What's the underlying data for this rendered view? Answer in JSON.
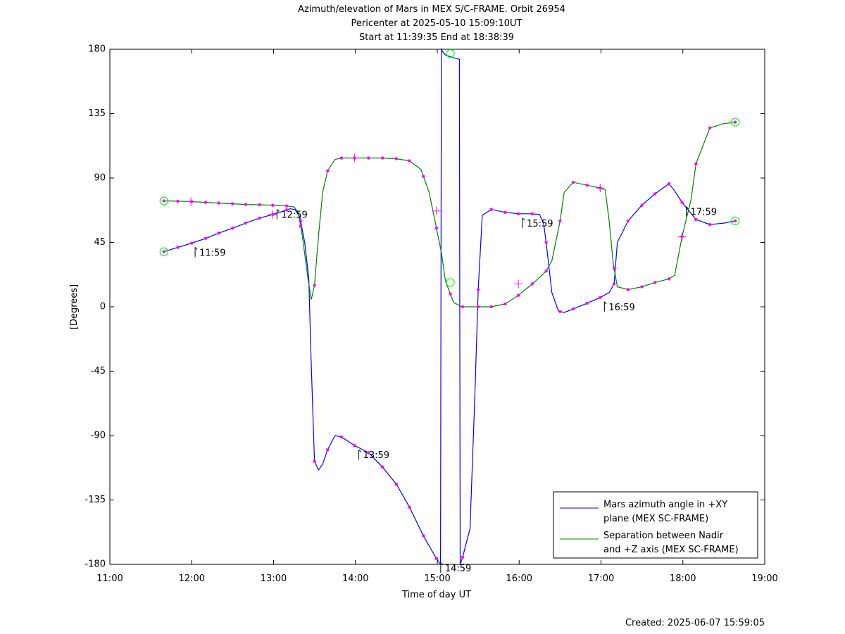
{
  "title_lines": [
    "Azimuth/elevation of Mars in MEX S/C-FRAME.  Orbit 26954",
    "Pericenter at 2025-05-10 15:09:10UT",
    "Start at 11:39:35 End at 18:38:39"
  ],
  "footer": "Created: 2025-06-07 15:59:05",
  "colors": {
    "azimuth": "#0000ff",
    "separation": "#008000",
    "marker": "#ff00ff",
    "endpoint": "#00ff00"
  },
  "chart_data": {
    "type": "line",
    "xlabel": "Time of day UT",
    "ylabel": "[Degrees]",
    "xlim": [
      11.0,
      19.0
    ],
    "ylim": [
      -180,
      180
    ],
    "x_ticks": [
      "11:00",
      "12:00",
      "13:00",
      "14:00",
      "15:00",
      "16:00",
      "17:00",
      "18:00",
      "19:00"
    ],
    "y_ticks": [
      "180",
      "135",
      "90",
      "45",
      "0",
      "-45",
      "-90",
      "-135",
      "-180"
    ],
    "grid": false,
    "legend_position": "bottom-right",
    "series": [
      {
        "name_lines": [
          "Mars azimuth angle in +XY",
          "plane (MEX SC-FRAME)"
        ],
        "x": [
          11.66,
          11.83,
          12.0,
          12.17,
          12.33,
          12.5,
          12.66,
          12.83,
          12.99,
          13.1,
          13.2,
          13.26,
          13.32,
          13.38,
          13.43,
          13.46,
          13.5,
          13.55,
          13.6,
          13.66,
          13.75,
          13.83,
          13.99,
          14.16,
          14.33,
          14.5,
          14.66,
          14.83,
          14.99,
          15.04,
          15.05,
          15.07,
          15.1,
          15.2,
          15.27,
          15.28,
          15.31,
          15.4,
          15.46,
          15.5,
          15.55,
          15.66,
          15.83,
          15.99,
          16.16,
          16.25,
          16.3,
          16.33,
          16.4,
          16.48,
          16.55,
          16.66,
          16.83,
          16.99,
          17.1,
          17.16,
          17.2,
          17.33,
          17.5,
          17.66,
          17.83,
          17.9,
          17.99,
          18.16,
          18.33,
          18.5,
          18.64
        ],
        "y": [
          38.5,
          41.5,
          44.5,
          47.8,
          51.5,
          55.0,
          58.5,
          62.0,
          64.5,
          66.5,
          68.5,
          68.0,
          63.0,
          45.0,
          20.0,
          -40.0,
          -108.0,
          -114.0,
          -110.0,
          -100.0,
          -90.0,
          -91.0,
          -97.0,
          -102.0,
          -112.0,
          -124.0,
          -140.0,
          -160.0,
          -176.0,
          -180.0,
          180.0,
          178.0,
          176.0,
          174.0,
          173.0,
          -180.0,
          -175.0,
          -155.0,
          -60.0,
          12.0,
          64.0,
          68.0,
          66.0,
          65.0,
          65.0,
          64.5,
          58.0,
          45.0,
          10.0,
          -3.0,
          -4.0,
          -1.5,
          2.5,
          6.5,
          10.0,
          16.0,
          45.0,
          60.0,
          71.0,
          79.0,
          86.0,
          81.0,
          73.0,
          61.0,
          57.5,
          58.5,
          60.0
        ],
        "markers_x": [
          11.66,
          11.83,
          12.0,
          12.17,
          12.33,
          12.5,
          12.66,
          12.83,
          12.99,
          13.16,
          13.33,
          13.5,
          13.66,
          13.83,
          13.99,
          14.16,
          14.33,
          14.5,
          14.66,
          14.83,
          14.99,
          15.31,
          15.5,
          15.66,
          15.83,
          15.99,
          16.16,
          16.33,
          16.5,
          16.66,
          16.83,
          16.99,
          17.16,
          17.33,
          17.5,
          17.66,
          17.83,
          17.99,
          18.16,
          18.33,
          18.64
        ]
      },
      {
        "name_lines": [
          "Separation between Nadir",
          "and +Z axis (MEX SC-FRAME)"
        ],
        "x": [
          11.66,
          11.83,
          12.0,
          12.17,
          12.33,
          12.5,
          12.66,
          12.83,
          12.99,
          13.16,
          13.25,
          13.3,
          13.35,
          13.42,
          13.46,
          13.5,
          13.55,
          13.6,
          13.66,
          13.75,
          13.83,
          13.99,
          14.16,
          14.33,
          14.5,
          14.66,
          14.8,
          14.9,
          14.99,
          15.05,
          15.1,
          15.2,
          15.3,
          15.4,
          15.5,
          15.66,
          15.83,
          15.99,
          16.16,
          16.25,
          16.33,
          16.4,
          16.5,
          16.55,
          16.66,
          16.83,
          16.99,
          17.05,
          17.1,
          17.15,
          17.2,
          17.33,
          17.5,
          17.66,
          17.83,
          17.9,
          17.99,
          18.1,
          18.16,
          18.33,
          18.5,
          18.64
        ],
        "y": [
          74.0,
          73.8,
          73.5,
          73.0,
          72.5,
          72.0,
          71.5,
          71.3,
          71.0,
          70.5,
          69.8,
          66.0,
          50.0,
          20.0,
          5.0,
          15.0,
          50.0,
          80.0,
          95.0,
          103.0,
          104.0,
          104.0,
          104.0,
          104.0,
          103.5,
          102.0,
          96.0,
          80.0,
          55.0,
          38.0,
          18.0,
          3.0,
          0.0,
          0.0,
          0.0,
          0.0,
          2.0,
          8.0,
          16.0,
          20.5,
          25.0,
          32.0,
          60.0,
          80.0,
          87.0,
          85.0,
          83.0,
          82.0,
          60.0,
          30.0,
          14.0,
          12.0,
          14.0,
          17.0,
          19.5,
          22.0,
          49.0,
          75.0,
          100.0,
          125.0,
          128.0,
          129.0
        ],
        "markers_x": [
          11.66,
          11.83,
          12.0,
          12.17,
          12.33,
          12.5,
          12.66,
          12.83,
          12.99,
          13.16,
          13.33,
          13.5,
          13.66,
          13.83,
          13.99,
          14.16,
          14.33,
          14.5,
          14.66,
          14.83,
          14.99,
          15.16,
          15.31,
          15.5,
          15.66,
          15.83,
          15.99,
          16.16,
          16.33,
          16.5,
          16.66,
          16.83,
          16.99,
          17.16,
          17.33,
          17.5,
          17.66,
          17.83,
          17.99,
          18.16,
          18.33,
          18.64
        ]
      }
    ],
    "hour_marks": [
      {
        "x": 11.99,
        "y": 44.5,
        "label": "11:59",
        "series": 0
      },
      {
        "x": 12.99,
        "y": 71.0,
        "label": "12:59",
        "series": 1
      },
      {
        "x": 13.99,
        "y": -97.0,
        "label": "13:59",
        "series": 0
      },
      {
        "x": 14.99,
        "y": -176.0,
        "label": "14:59",
        "series": 0
      },
      {
        "x": 15.99,
        "y": 65.0,
        "label": "15:59",
        "series": 0
      },
      {
        "x": 16.99,
        "y": 6.5,
        "label": "16:59",
        "series": 0
      },
      {
        "x": 17.99,
        "y": 73.0,
        "label": "17:59",
        "series": 0
      }
    ],
    "crosses": [
      {
        "x": 11.99,
        "y": 73.5
      },
      {
        "x": 12.99,
        "y": 64.5
      },
      {
        "x": 13.99,
        "y": 104.0
      },
      {
        "x": 14.99,
        "y": 67.0
      },
      {
        "x": 15.99,
        "y": 16.0
      },
      {
        "x": 16.99,
        "y": 83.0
      },
      {
        "x": 17.99,
        "y": 49.0
      }
    ],
    "endpoints": [
      {
        "x": 11.66,
        "y": 38.5
      },
      {
        "x": 11.66,
        "y": 74.0
      },
      {
        "x": 18.64,
        "y": 60.0
      },
      {
        "x": 18.64,
        "y": 129.0
      },
      {
        "x": 15.16,
        "y": 177.0
      },
      {
        "x": 15.16,
        "y": 17.0
      }
    ]
  }
}
